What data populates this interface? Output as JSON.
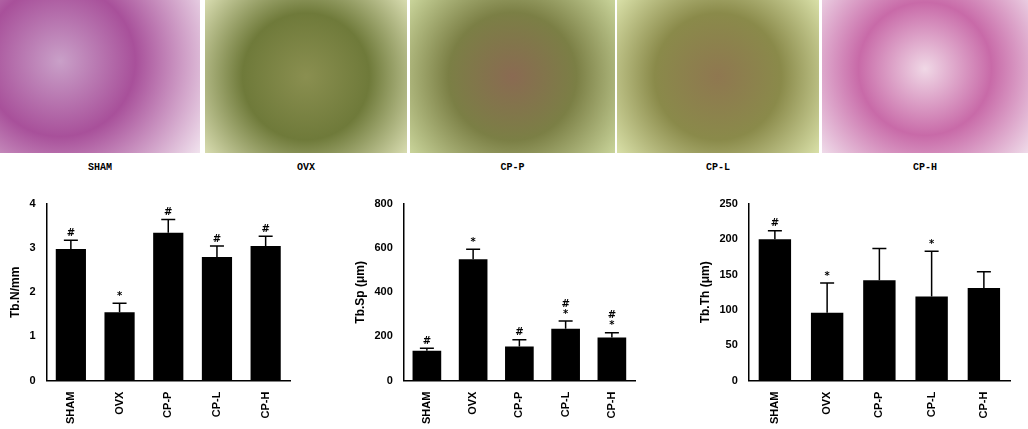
{
  "image_panels": {
    "labels": [
      "SHAM",
      "OVX",
      "CP-P",
      "CP-L",
      "CP-H"
    ]
  },
  "chart_data": [
    {
      "type": "bar",
      "y_label": "Tb.N/mm",
      "categories": [
        "SHAM",
        "OVX",
        "CP-P",
        "CP-L",
        "CP-H"
      ],
      "values": [
        2.98,
        1.55,
        3.35,
        2.8,
        3.05
      ],
      "errors": [
        0.2,
        0.2,
        0.3,
        0.25,
        0.22
      ],
      "annotations": [
        [
          "#"
        ],
        [
          "*"
        ],
        [
          "#"
        ],
        [
          "#"
        ],
        [
          "#"
        ]
      ],
      "color": "#000000",
      "ylim": [
        0,
        4
      ],
      "yticks": [
        0,
        1,
        2,
        3,
        4
      ],
      "grid": false
    },
    {
      "type": "bar",
      "y_label": "Tb.Sp (μm)",
      "categories": [
        "SHAM",
        "OVX",
        "CP-P",
        "CP-L",
        "CP-H"
      ],
      "values": [
        135,
        550,
        155,
        235,
        195
      ],
      "errors": [
        12,
        45,
        30,
        35,
        22
      ],
      "annotations": [
        [
          "#"
        ],
        [
          "*"
        ],
        [
          "#"
        ],
        [
          "#",
          "*"
        ],
        [
          "#",
          "*"
        ]
      ],
      "color": "#000000",
      "ylim": [
        0,
        800
      ],
      "yticks": [
        0,
        200,
        400,
        600,
        800
      ],
      "grid": false
    },
    {
      "type": "bar",
      "y_label": "Tb.Th (μm)",
      "categories": [
        "SHAM",
        "OVX",
        "CP-P",
        "CP-L",
        "CP-H"
      ],
      "values": [
        200,
        96,
        142,
        119,
        131
      ],
      "errors": [
        12,
        42,
        45,
        64,
        23
      ],
      "annotations": [
        [
          "#"
        ],
        [
          "*"
        ],
        null,
        [
          "*"
        ],
        null
      ],
      "color": "#000000",
      "ylim": [
        0,
        250
      ],
      "yticks": [
        0,
        50,
        100,
        150,
        200,
        250
      ],
      "grid": false
    }
  ]
}
